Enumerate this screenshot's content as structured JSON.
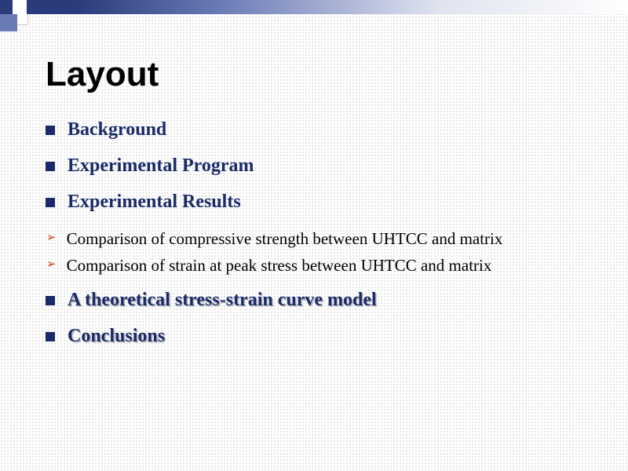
{
  "slide": {
    "title": "Layout",
    "title_fontsize": 44,
    "title_color": "#000000",
    "bullets": [
      {
        "text": "Background",
        "shadow": false
      },
      {
        "text": "Experimental Program",
        "shadow": false
      },
      {
        "text": "Experimental Results",
        "shadow": false
      }
    ],
    "sub_bullets": [
      {
        "text": "Comparison of compressive strength between UHTCC and matrix"
      },
      {
        "text": "Comparison of strain at peak stress between UHTCC and matrix"
      }
    ],
    "bullets_after": [
      {
        "text": " A theoretical stress-strain curve model",
        "shadow": true
      },
      {
        "text": "Conclusions",
        "shadow": true
      }
    ],
    "colors": {
      "bullet_square": "#1a2a6a",
      "bullet_text": "#1a2a6a",
      "arrow": "#d04020",
      "sub_text": "#000000",
      "top_bar_dark": "#2a3a7a",
      "box_accent": "#6a7ab5"
    },
    "fonts": {
      "title_family": "Arial",
      "body_family": "Times New Roman",
      "bullet_fontsize": 24,
      "sub_fontsize": 21
    }
  }
}
